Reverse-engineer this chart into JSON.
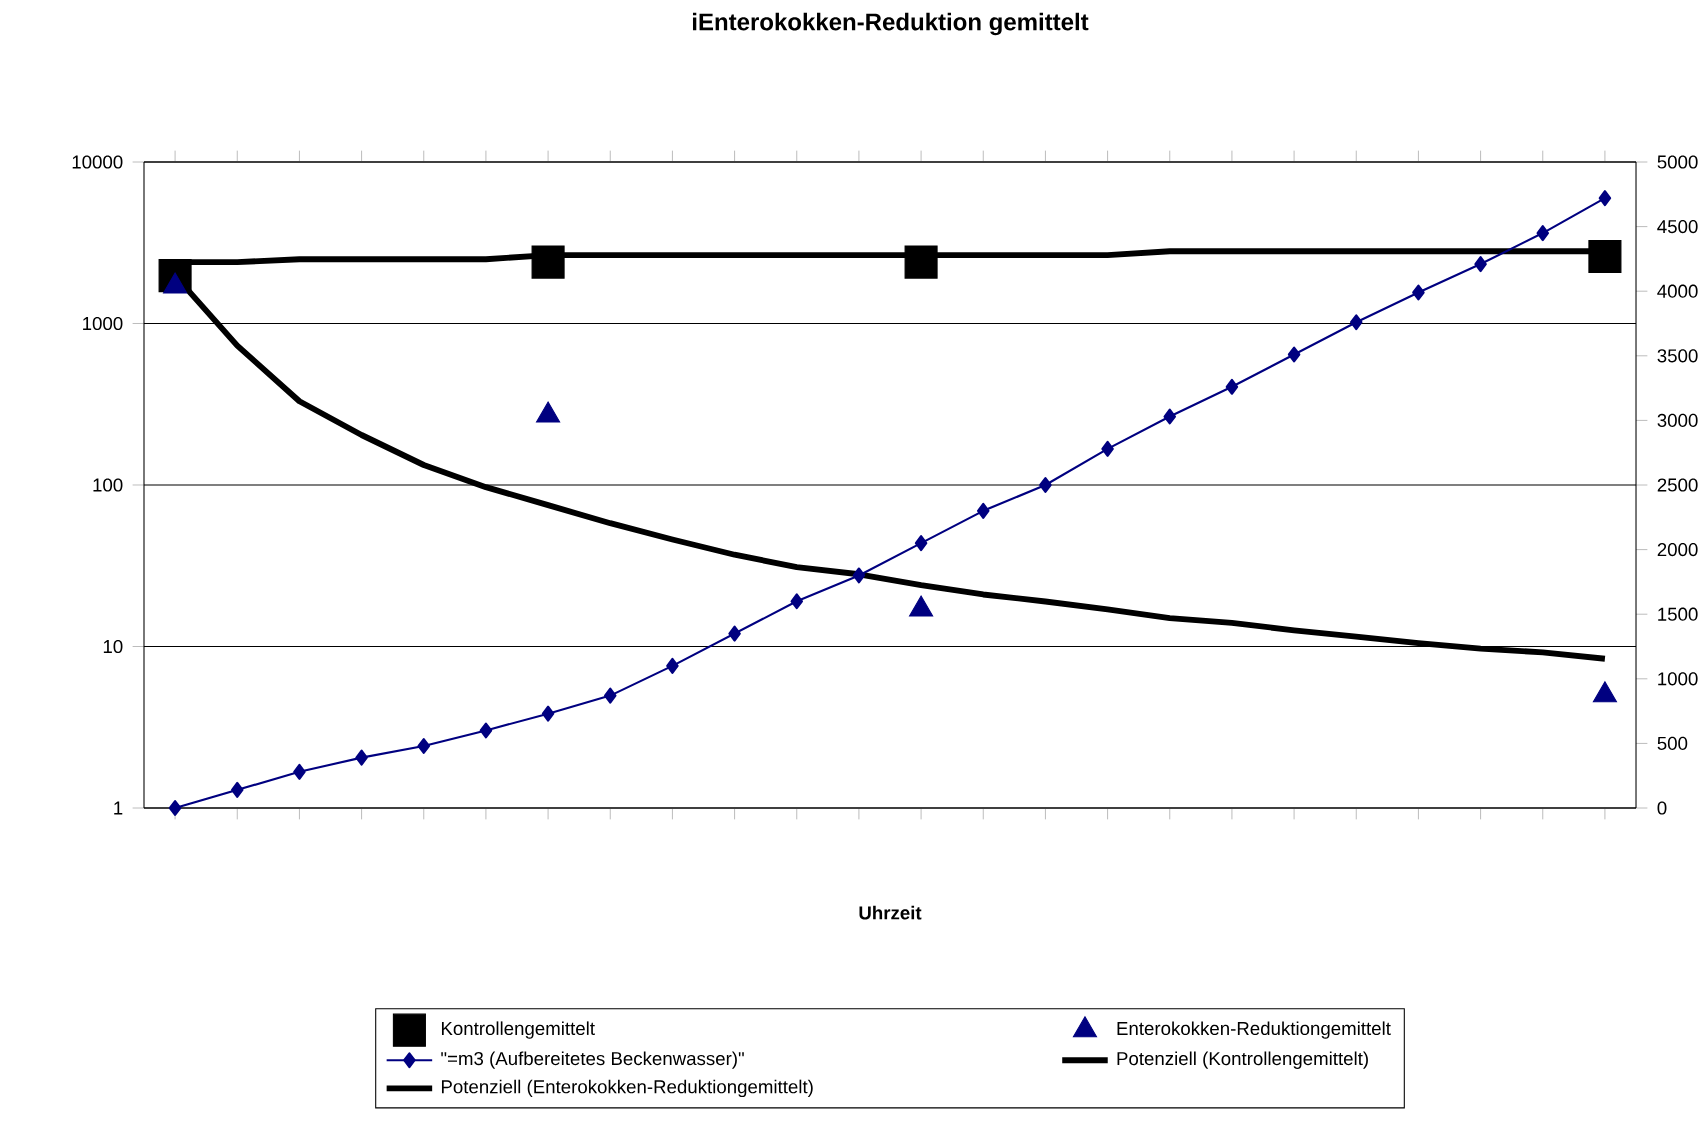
{
  "chart_data": {
    "type": "line",
    "title": "iEnterokokken-Reduktion gemittelt",
    "xlabel": "Uhrzeit",
    "categories": [
      null,
      null,
      null,
      null,
      null,
      null,
      null,
      null,
      null,
      null,
      null,
      null,
      null,
      null,
      null,
      null,
      null,
      null,
      null,
      null,
      null,
      null,
      null,
      null
    ],
    "log": "y",
    "ylim": [
      1,
      10000
    ],
    "yticks": [
      1,
      10,
      100,
      1000,
      10000
    ],
    "y2lim": [
      0,
      5000
    ],
    "y2ticks": [
      0,
      500,
      1000,
      1500,
      2000,
      2500,
      3000,
      3500,
      4000,
      4500,
      5000
    ],
    "grid": "y",
    "legend": "bottom",
    "series": [
      {
        "name": "Kontrollengemittelt",
        "type": "scatter",
        "marker": "square",
        "color": "#000000",
        "values": [
          1980,
          null,
          null,
          null,
          null,
          null,
          2400,
          null,
          null,
          null,
          null,
          null,
          2400,
          null,
          null,
          null,
          null,
          null,
          null,
          null,
          null,
          null,
          null,
          2600
        ]
      },
      {
        "name": "Enterokokken-Reduktiongemittelt",
        "type": "scatter",
        "marker": "triangle",
        "color": "#000080",
        "values": [
          1700,
          null,
          null,
          null,
          null,
          null,
          270,
          null,
          null,
          null,
          null,
          null,
          17,
          null,
          null,
          null,
          null,
          null,
          null,
          null,
          null,
          null,
          null,
          5
        ]
      },
      {
        "name": "\"=m3 (Aufbereitetes Beckenwasser)\"",
        "axis": "y2",
        "marker": "diamond",
        "color": "#000080",
        "values": [
          0,
          140,
          280,
          390,
          480,
          600,
          730,
          870,
          1100,
          1350,
          1600,
          1800,
          2050,
          2300,
          2500,
          2780,
          3030,
          3260,
          3510,
          3760,
          3990,
          4210,
          4450,
          4720
        ]
      },
      {
        "name": "Potenziell (Kontrollengemittelt)",
        "marker": "none",
        "color": "#000000",
        "values": [
          2400,
          2400,
          2500,
          2500,
          2500,
          2500,
          2650,
          2650,
          2650,
          2650,
          2650,
          2650,
          2650,
          2650,
          2650,
          2650,
          2800,
          2800,
          2800,
          2800,
          2800,
          2800,
          2800,
          2800
        ]
      },
      {
        "name": "Potenziell (Enterokokken-Reduktiongemittelt)",
        "marker": "none",
        "color": "#000000",
        "values": [
          1980,
          730,
          330,
          204,
          133,
          97,
          75,
          58,
          46,
          37,
          31,
          28,
          24,
          21,
          19,
          17,
          15,
          14,
          12.6,
          11.5,
          10.5,
          9.7,
          9.2,
          8.4
        ]
      }
    ]
  }
}
